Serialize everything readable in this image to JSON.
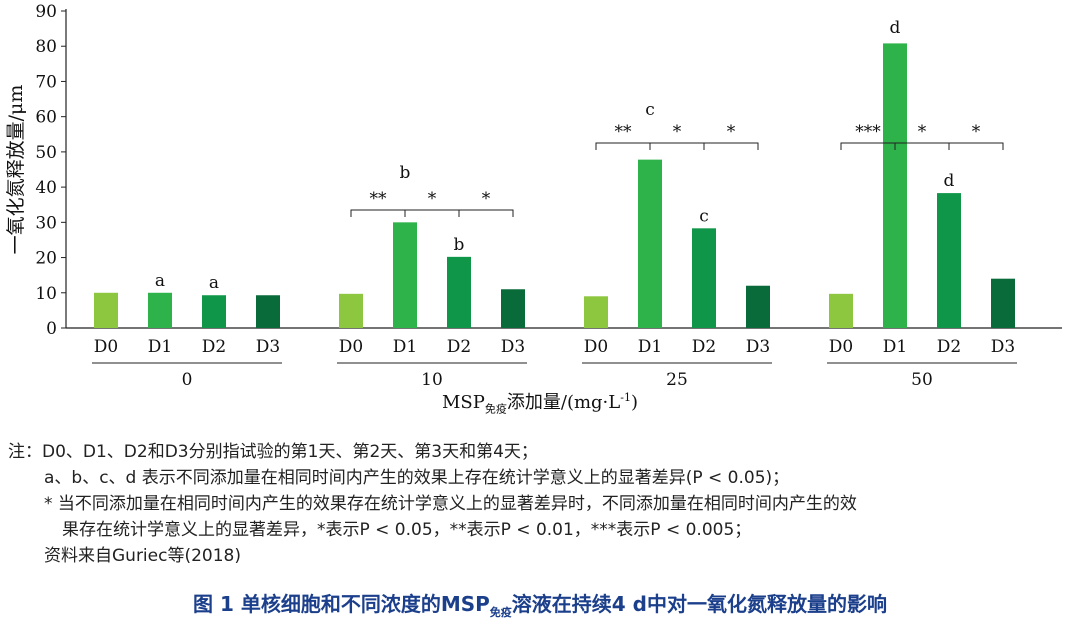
{
  "chart_data": {
    "type": "bar",
    "ylabel": "一氧化氮释放量/μm",
    "xlabel_main": "MSP",
    "xlabel_sub": "免疫",
    "xlabel_tail": "添加量/(mg·L",
    "xlabel_exp": "-1",
    "xlabel_close": ")",
    "ylim": [
      0,
      90
    ],
    "yticks": [
      "0",
      "10",
      "20",
      "30",
      "40",
      "50",
      "60",
      "70",
      "80",
      "90"
    ],
    "day_labels": [
      "D0",
      "D1",
      "D2",
      "D3"
    ],
    "colors": [
      "#8dc63f",
      "#2eb24a",
      "#0f9648",
      "#0a6b3a"
    ],
    "groups": [
      {
        "label": "0",
        "values": [
          10,
          10,
          9.3,
          9.3
        ],
        "letters": [
          "",
          "a",
          "a",
          ""
        ],
        "brackets": []
      },
      {
        "label": "10",
        "values": [
          9.7,
          30,
          20.2,
          11
        ],
        "letters": [
          "",
          "b",
          "b",
          ""
        ],
        "brackets": [
          {
            "from": 0,
            "to": 1,
            "text": "**"
          },
          {
            "from": 1,
            "to": 2,
            "text": "*"
          },
          {
            "from": 2,
            "to": 3,
            "text": "*"
          }
        ]
      },
      {
        "label": "25",
        "values": [
          9,
          47.8,
          28.3,
          12
        ],
        "letters": [
          "",
          "c",
          "c",
          ""
        ],
        "brackets": [
          {
            "from": 0,
            "to": 1,
            "text": "**"
          },
          {
            "from": 1,
            "to": 2,
            "text": "*"
          },
          {
            "from": 2,
            "to": 3,
            "text": "*"
          }
        ]
      },
      {
        "label": "50",
        "values": [
          9.7,
          80.8,
          38.3,
          14
        ],
        "letters": [
          "",
          "d",
          "d",
          ""
        ],
        "brackets": [
          {
            "from": 0,
            "to": 1,
            "text": "***"
          },
          {
            "from": 1,
            "to": 2,
            "text": "*"
          },
          {
            "from": 2,
            "to": 3,
            "text": "*"
          }
        ]
      }
    ]
  },
  "notes": {
    "line1": "注：D0、D1、D2和D3分别指试验的第1天、第2天、第3天和第4天；",
    "line2": "a、b、c、d 表示不同添加量在相同时间内产生的效果上存在统计学意义上的显著差异(P < 0.05)；",
    "line3": "* 当不同添加量在相同时间内产生的效果存在统计学意义上的显著差异时，不同添加量在相同时间内产生的效",
    "line4": "果存在统计学意义上的显著差异，*表示P < 0.05，**表示P < 0.01，***表示P < 0.005；",
    "line5": "资料来自Guriec等(2018)"
  },
  "caption": {
    "pre": "图 1  单核细胞和不同浓度的MSP",
    "sub": "免疫",
    "post": "溶液在持续4 d中对一氧化氮释放量的影响"
  }
}
